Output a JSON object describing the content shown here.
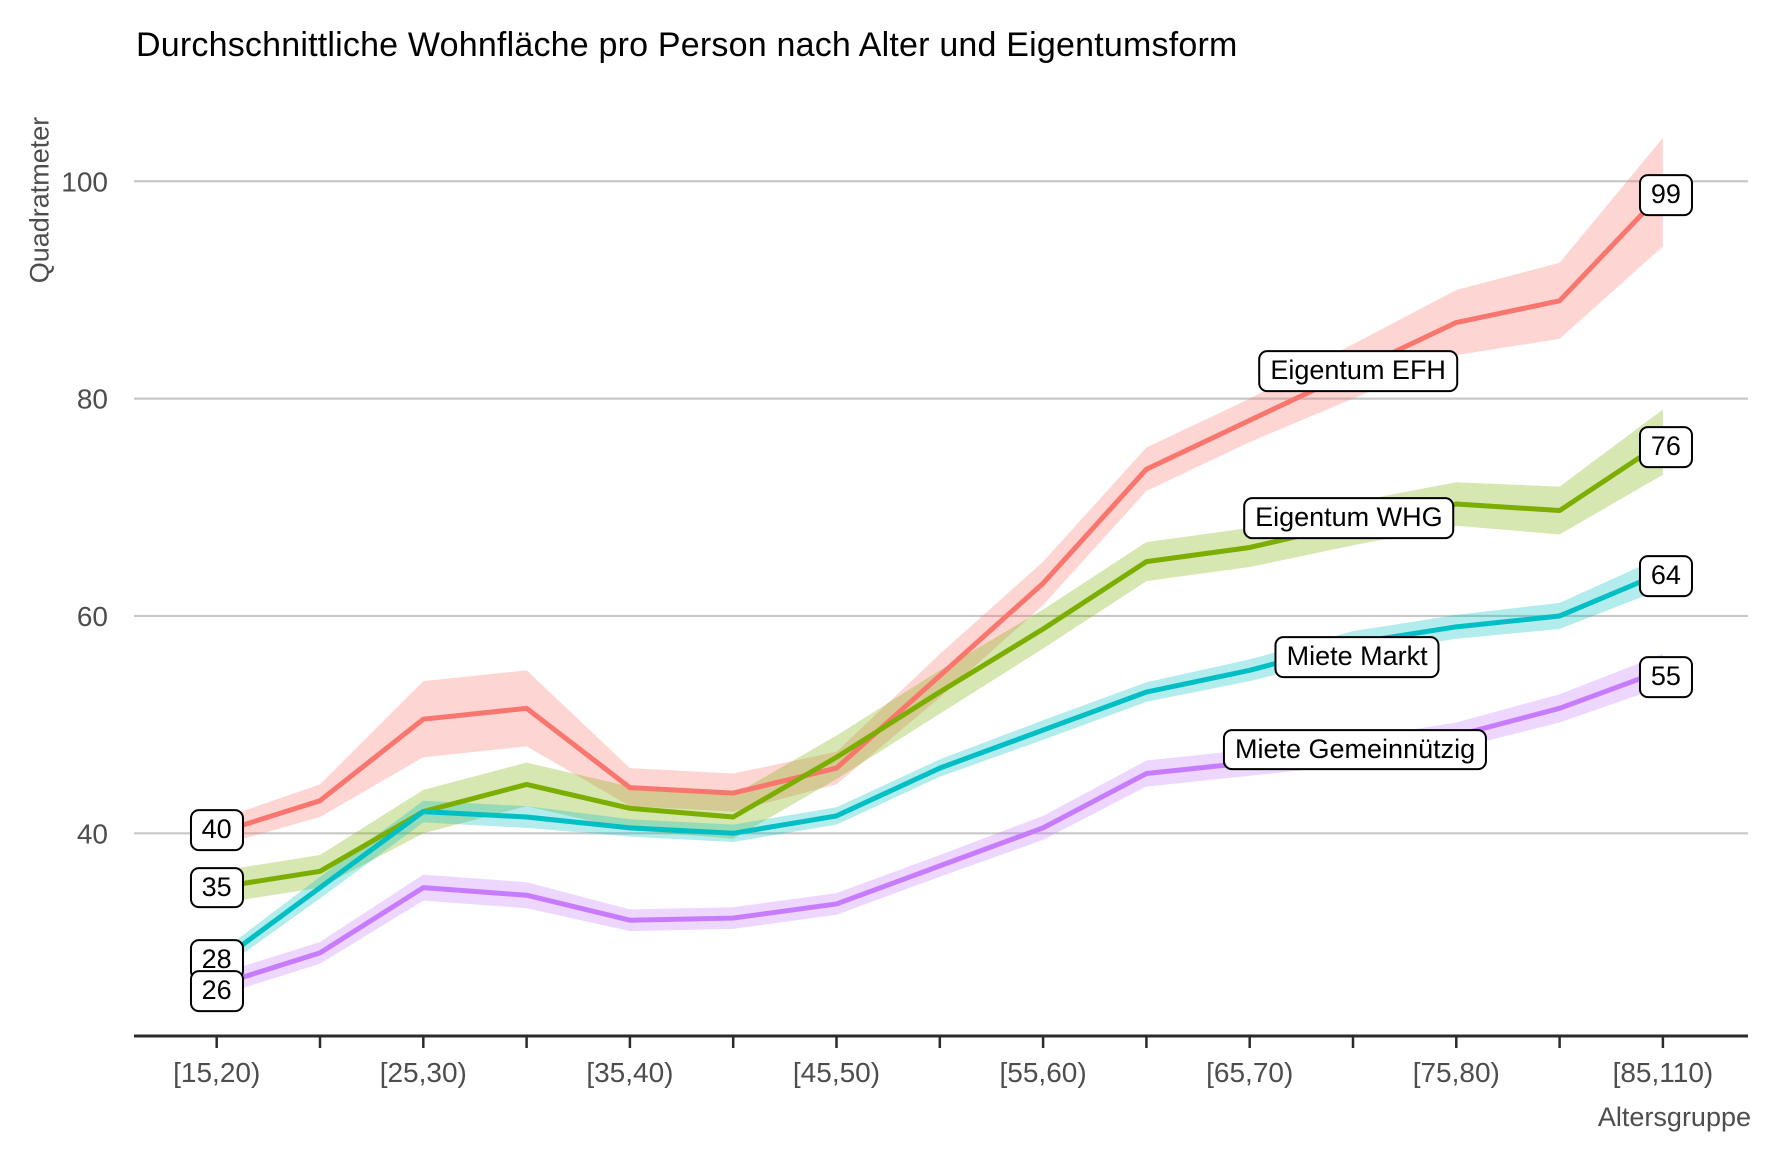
{
  "title": "Durchschnittliche Wohnfläche pro Person nach Alter und Eigentumsform",
  "colors": {
    "axis_text": "#4d4d4d",
    "grid_line": "#c8c8c8",
    "axis_line": "#2b2b2b",
    "background": "#ffffff",
    "label_border": "#000000",
    "label_background": "#ffffff"
  },
  "chart_data": {
    "type": "line",
    "title": "Durchschnittliche Wohnfläche pro Person nach Alter und Eigentumsform",
    "xlabel": "Altersgruppe",
    "ylabel": "Quadratmeter",
    "grid": "horizontal-only",
    "legend_position": "inline-labels",
    "ylim": [
      21.5,
      108
    ],
    "y_ticks": [
      40,
      60,
      80,
      100
    ],
    "categories": [
      "[15,20)",
      "[20,25)",
      "[25,30)",
      "[30,35)",
      "[35,40)",
      "[40,45)",
      "[45,50)",
      "[50,55)",
      "[55,60)",
      "[60,65)",
      "[65,70)",
      "[70,75)",
      "[75,80)",
      "[80,85)",
      "[85,110)"
    ],
    "x_tick_shown_indices": [
      0,
      2,
      4,
      6,
      8,
      10,
      12,
      14
    ],
    "x_tick_labels_shown": [
      "[15,20)",
      "[25,30)",
      "[35,40)",
      "[45,50)",
      "[55,60)",
      "[65,70)",
      "[75,80)",
      "[85,110)"
    ],
    "series": [
      {
        "name": "Eigentum EFH",
        "id": "eigentum-efh",
        "color": "#F8766D",
        "values": [
          40,
          43,
          50.5,
          51.5,
          44.2,
          43.7,
          46.0,
          54.5,
          63.0,
          73.5,
          78.0,
          82.5,
          87.0,
          89.0,
          99
        ],
        "band_lower": [
          38.8,
          41.5,
          47.0,
          48.0,
          42.5,
          42.0,
          44.5,
          52.5,
          61.0,
          71.5,
          76.0,
          80.0,
          84.0,
          85.5,
          94.0
        ],
        "band_upper": [
          41.2,
          44.5,
          54.0,
          55.0,
          46.0,
          45.5,
          47.5,
          56.5,
          65.0,
          75.5,
          80.0,
          85.0,
          90.0,
          92.5,
          104.0
        ],
        "first_value_label": "40",
        "last_value_label": "99"
      },
      {
        "name": "Eigentum WHG",
        "id": "eigentum-whg",
        "color": "#7CAE00",
        "values": [
          35,
          36.5,
          42.0,
          44.5,
          42.3,
          41.5,
          47.0,
          53.0,
          58.8,
          65.0,
          66.3,
          68.5,
          70.3,
          69.7,
          76
        ],
        "band_lower": [
          33.5,
          35.0,
          40.0,
          42.5,
          40.3,
          39.5,
          45.0,
          51.0,
          57.0,
          63.2,
          64.5,
          66.5,
          68.3,
          67.5,
          73.0
        ],
        "band_upper": [
          36.5,
          38.0,
          44.0,
          46.5,
          44.3,
          43.5,
          49.0,
          55.0,
          60.6,
          66.8,
          68.1,
          70.5,
          72.3,
          71.9,
          79.0
        ],
        "first_value_label": "35",
        "last_value_label": "76"
      },
      {
        "name": "Miete Markt",
        "id": "miete-markt",
        "color": "#00BFC4",
        "values": [
          28,
          35.0,
          42.0,
          41.5,
          40.5,
          40.0,
          41.6,
          46.0,
          49.5,
          53.0,
          55.0,
          57.5,
          59.0,
          60.0,
          64
        ],
        "band_lower": [
          27.2,
          34.0,
          41.0,
          40.5,
          39.7,
          39.2,
          40.8,
          45.2,
          48.6,
          52.1,
          54.0,
          56.4,
          57.9,
          58.8,
          62.5
        ],
        "band_upper": [
          28.8,
          36.0,
          43.0,
          42.5,
          41.3,
          40.8,
          42.4,
          46.8,
          50.4,
          53.9,
          56.0,
          58.6,
          60.1,
          61.2,
          65.5
        ],
        "first_value_label": "28",
        "last_value_label": "64"
      },
      {
        "name": "Miete Gemeinnützig",
        "id": "miete-gemeinnuetzig",
        "color": "#C77CFF",
        "values": [
          26,
          29.0,
          35.0,
          34.3,
          32.0,
          32.2,
          33.5,
          37.0,
          40.5,
          45.5,
          46.5,
          47.5,
          49.0,
          51.5,
          55
        ],
        "band_lower": [
          25.0,
          28.0,
          33.8,
          33.1,
          31.0,
          31.2,
          32.5,
          36.0,
          39.4,
          44.3,
          45.3,
          46.3,
          47.8,
          50.2,
          53.5
        ],
        "band_upper": [
          27.0,
          30.0,
          36.2,
          35.5,
          33.0,
          33.2,
          34.5,
          38.0,
          41.6,
          46.7,
          47.7,
          48.7,
          50.2,
          52.8,
          56.5
        ],
        "first_value_label": "26",
        "last_value_label": "55"
      }
    ],
    "series_labels": [
      {
        "text": "Eigentum EFH",
        "x_index": 11.05,
        "value": 82.5
      },
      {
        "text": "Eigentum WHG",
        "x_index": 10.96,
        "value": 69.0
      },
      {
        "text": "Miete Markt",
        "x_index": 11.04,
        "value": 56.2
      },
      {
        "text": "Miete Gemeinnützig",
        "x_index": 11.02,
        "value": 47.7
      }
    ]
  }
}
